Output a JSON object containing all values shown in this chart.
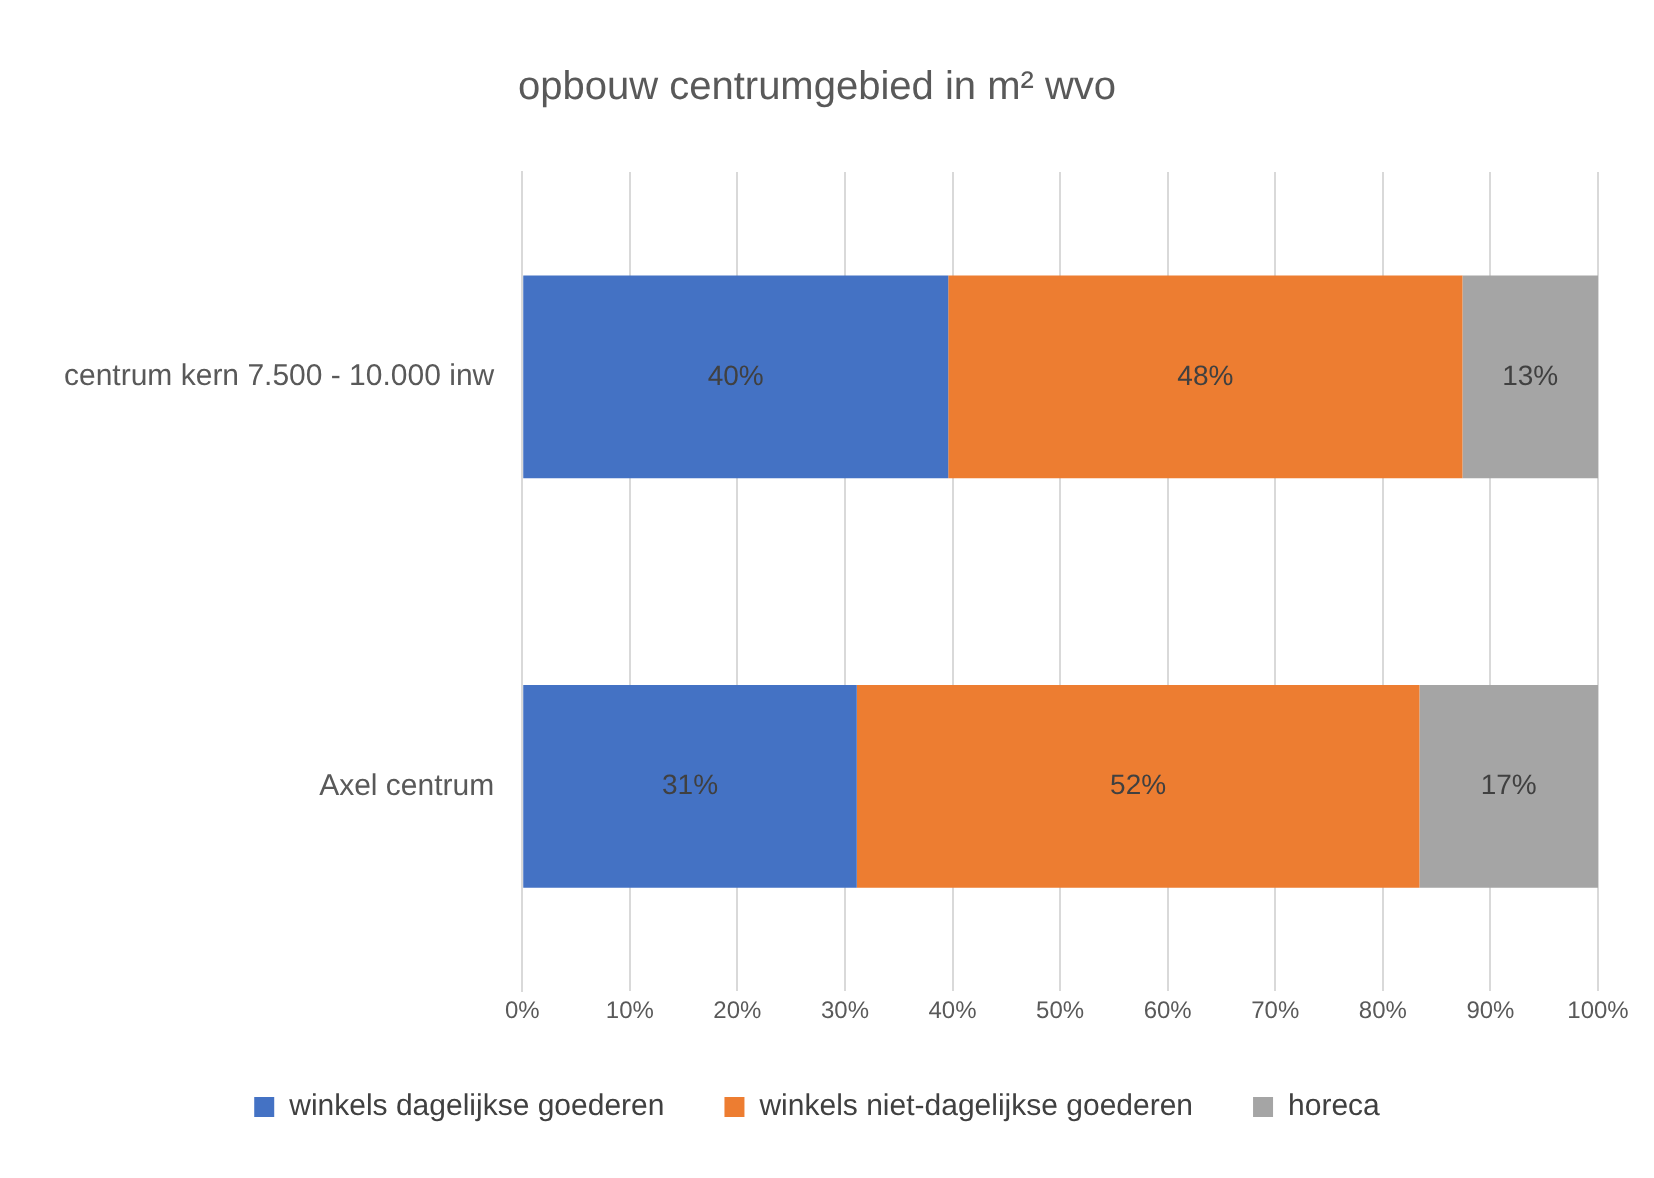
{
  "chart_data": {
    "type": "bar",
    "orientation": "horizontal",
    "stacked": true,
    "title": "opbouw centrumgebied in m² wvo",
    "categories": [
      "centrum kern 7.500 - 10.000 inw",
      "Axel centrum"
    ],
    "series": [
      {
        "name": "winkels dagelijkse goederen",
        "color": "#4472c4",
        "values": [
          39.6,
          31.1
        ],
        "value_labels": [
          "40%",
          "31%"
        ]
      },
      {
        "name": "winkels niet-dagelijkse goederen",
        "color": "#ed7d31",
        "values": [
          47.8,
          52.3
        ],
        "value_labels": [
          "48%",
          "52%"
        ]
      },
      {
        "name": "horeca",
        "color": "#a5a5a5",
        "values": [
          12.6,
          16.6
        ],
        "value_labels": [
          "13%",
          "17%"
        ]
      }
    ],
    "xlim": [
      0,
      100
    ],
    "xticks": [
      {
        "value": 0,
        "label": "0%"
      },
      {
        "value": 10,
        "label": "10%"
      },
      {
        "value": 20,
        "label": "20%"
      },
      {
        "value": 30,
        "label": "30%"
      },
      {
        "value": 40,
        "label": "40%"
      },
      {
        "value": 50,
        "label": "50%"
      },
      {
        "value": 60,
        "label": "60%"
      },
      {
        "value": 70,
        "label": "70%"
      },
      {
        "value": 80,
        "label": "80%"
      },
      {
        "value": 90,
        "label": "90%"
      },
      {
        "value": 100,
        "label": "100%"
      }
    ],
    "grid": "x",
    "legend": "bottom"
  }
}
